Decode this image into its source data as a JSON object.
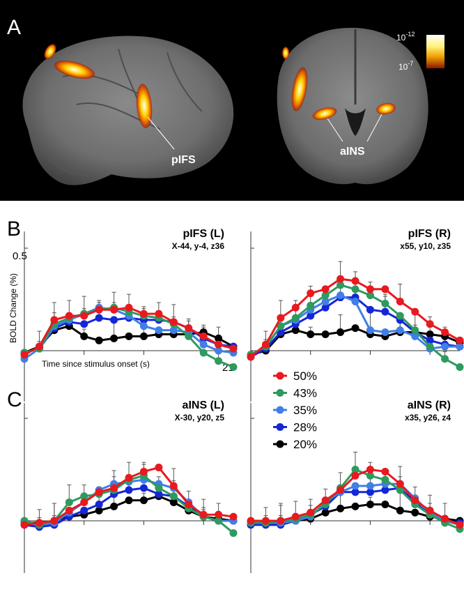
{
  "panels": {
    "A": "A",
    "B": "B",
    "C": "C"
  },
  "brain": {
    "left_label": "pIFS",
    "right_label": "aINS",
    "scale_top": "10",
    "scale_top_exp": "-12",
    "scale_bottom": "10",
    "scale_bottom_exp": "-7"
  },
  "axes": {
    "y_label": "BOLD Change (%)",
    "x_label": "Time since stimulus onset (s)",
    "y_tick_label": "0.5",
    "x_tick_label": "21"
  },
  "legend": [
    {
      "label": "50%",
      "color": "#e8191f"
    },
    {
      "label": "43%",
      "color": "#2e9a5e"
    },
    {
      "label": "35%",
      "color": "#3f7fe6"
    },
    {
      "label": "28%",
      "color": "#1526d6"
    },
    {
      "label": "20%",
      "color": "#000000"
    }
  ],
  "chart_data": [
    {
      "type": "line",
      "title": "pIFS (L)",
      "subtitle": "X-44, y-4, z36",
      "x": [
        0,
        1.5,
        3,
        4.5,
        6,
        7.5,
        9,
        10.5,
        12,
        13.5,
        15,
        16.5,
        18,
        19.5,
        21
      ],
      "ylim": [
        -0.25,
        0.5
      ],
      "series": [
        {
          "name": "50%",
          "values": [
            -0.02,
            0.02,
            0.15,
            0.17,
            0.17,
            0.2,
            0.2,
            0.21,
            0.18,
            0.18,
            0.14,
            0.11,
            0.07,
            0.03,
            0.01
          ]
        },
        {
          "name": "43%",
          "values": [
            -0.01,
            0.01,
            0.13,
            0.16,
            0.18,
            0.2,
            0.21,
            0.19,
            0.17,
            0.16,
            0.13,
            0.07,
            -0.01,
            -0.05,
            -0.08
          ]
        },
        {
          "name": "35%",
          "values": [
            -0.04,
            0.01,
            0.12,
            0.15,
            0.18,
            0.21,
            0.2,
            0.17,
            0.12,
            0.1,
            0.1,
            0.09,
            0.03,
            0.0,
            -0.01
          ]
        },
        {
          "name": "28%",
          "values": [
            -0.01,
            0.01,
            0.11,
            0.14,
            0.13,
            0.16,
            0.15,
            0.16,
            0.15,
            0.15,
            0.14,
            0.11,
            0.06,
            0.03,
            0.02
          ]
        },
        {
          "name": "20%",
          "values": [
            -0.01,
            0.02,
            0.1,
            0.12,
            0.07,
            0.05,
            0.06,
            0.07,
            0.07,
            0.08,
            0.08,
            0.08,
            0.09,
            0.06,
            0.02
          ]
        }
      ]
    },
    {
      "type": "line",
      "title": "pIFS (R)",
      "subtitle": "x55, y10, z35",
      "x": [
        0,
        1.5,
        3,
        4.5,
        6,
        7.5,
        9,
        10.5,
        12,
        13.5,
        15,
        16.5,
        18,
        19.5,
        21
      ],
      "ylim": [
        -0.25,
        0.5
      ],
      "series": [
        {
          "name": "50%",
          "values": [
            -0.03,
            0.03,
            0.16,
            0.21,
            0.28,
            0.3,
            0.35,
            0.34,
            0.3,
            0.3,
            0.24,
            0.19,
            0.13,
            0.09,
            0.05
          ]
        },
        {
          "name": "43%",
          "values": [
            -0.02,
            0.02,
            0.12,
            0.16,
            0.22,
            0.27,
            0.32,
            0.3,
            0.27,
            0.23,
            0.17,
            0.1,
            0.02,
            -0.04,
            -0.08
          ]
        },
        {
          "name": "35%",
          "values": [
            -0.02,
            0.02,
            0.12,
            0.15,
            0.2,
            0.24,
            0.27,
            0.24,
            0.1,
            0.09,
            0.1,
            0.07,
            0.01,
            0.02,
            0.02
          ]
        },
        {
          "name": "28%",
          "values": [
            -0.03,
            0.01,
            0.09,
            0.13,
            0.17,
            0.21,
            0.26,
            0.26,
            0.2,
            0.19,
            0.15,
            0.09,
            0.05,
            0.03,
            0.02
          ]
        },
        {
          "name": "20%",
          "values": [
            -0.02,
            0.0,
            0.08,
            0.1,
            0.08,
            0.08,
            0.09,
            0.11,
            0.08,
            0.07,
            0.09,
            0.09,
            0.08,
            0.07,
            0.04
          ]
        }
      ]
    },
    {
      "type": "line",
      "title": "aINS (L)",
      "subtitle": "X-30, y20, z5",
      "x": [
        0,
        1.5,
        3,
        4.5,
        6,
        7.5,
        9,
        10.5,
        12,
        13.5,
        15,
        16.5,
        18,
        19.5,
        21
      ],
      "ylim": [
        -0.25,
        0.5
      ],
      "series": [
        {
          "name": "50%",
          "values": [
            -0.02,
            -0.01,
            0.0,
            0.05,
            0.09,
            0.14,
            0.16,
            0.21,
            0.24,
            0.26,
            0.17,
            0.08,
            0.03,
            0.03,
            0.02
          ]
        },
        {
          "name": "43%",
          "values": [
            0.0,
            -0.02,
            0.0,
            0.09,
            0.12,
            0.13,
            0.15,
            0.2,
            0.22,
            0.16,
            0.12,
            0.06,
            0.02,
            0.0,
            -0.06
          ]
        },
        {
          "name": "35%",
          "values": [
            -0.01,
            -0.02,
            -0.01,
            0.04,
            0.09,
            0.15,
            0.18,
            0.19,
            0.2,
            0.18,
            0.16,
            0.09,
            0.02,
            0.0,
            0.0
          ]
        },
        {
          "name": "28%",
          "values": [
            -0.02,
            -0.03,
            -0.02,
            0.02,
            0.05,
            0.08,
            0.13,
            0.15,
            0.16,
            0.13,
            0.12,
            0.07,
            0.02,
            0.0,
            0.0
          ]
        },
        {
          "name": "20%",
          "values": [
            -0.01,
            -0.01,
            0.0,
            0.02,
            0.03,
            0.05,
            0.07,
            0.1,
            0.1,
            0.12,
            0.09,
            0.05,
            0.02,
            0.01,
            0.0
          ]
        }
      ]
    },
    {
      "type": "line",
      "title": "aINS (R)",
      "subtitle": "x35, y26, z4",
      "x": [
        0,
        1.5,
        3,
        4.5,
        6,
        7.5,
        9,
        10.5,
        12,
        13.5,
        15,
        16.5,
        18,
        19.5,
        21
      ],
      "ylim": [
        -0.25,
        0.5
      ],
      "series": [
        {
          "name": "50%",
          "values": [
            0.0,
            0.0,
            0.0,
            0.02,
            0.04,
            0.1,
            0.15,
            0.22,
            0.25,
            0.24,
            0.18,
            0.1,
            0.05,
            0.01,
            -0.02
          ]
        },
        {
          "name": "43%",
          "values": [
            -0.01,
            -0.01,
            0.0,
            0.01,
            0.03,
            0.08,
            0.16,
            0.25,
            0.22,
            0.2,
            0.15,
            0.08,
            0.03,
            -0.01,
            -0.04
          ]
        },
        {
          "name": "35%",
          "values": [
            -0.01,
            -0.01,
            -0.01,
            0.0,
            0.02,
            0.09,
            0.14,
            0.17,
            0.17,
            0.18,
            0.18,
            0.11,
            0.04,
            0.0,
            -0.02
          ]
        },
        {
          "name": "28%",
          "values": [
            -0.02,
            -0.02,
            -0.02,
            0.0,
            0.03,
            0.07,
            0.14,
            0.14,
            0.14,
            0.15,
            0.16,
            0.09,
            0.03,
            0.0,
            -0.01
          ]
        },
        {
          "name": "20%",
          "values": [
            -0.01,
            -0.01,
            -0.01,
            0.0,
            0.01,
            0.04,
            0.06,
            0.07,
            0.08,
            0.08,
            0.05,
            0.04,
            0.02,
            0.01,
            0.0
          ]
        }
      ]
    }
  ]
}
